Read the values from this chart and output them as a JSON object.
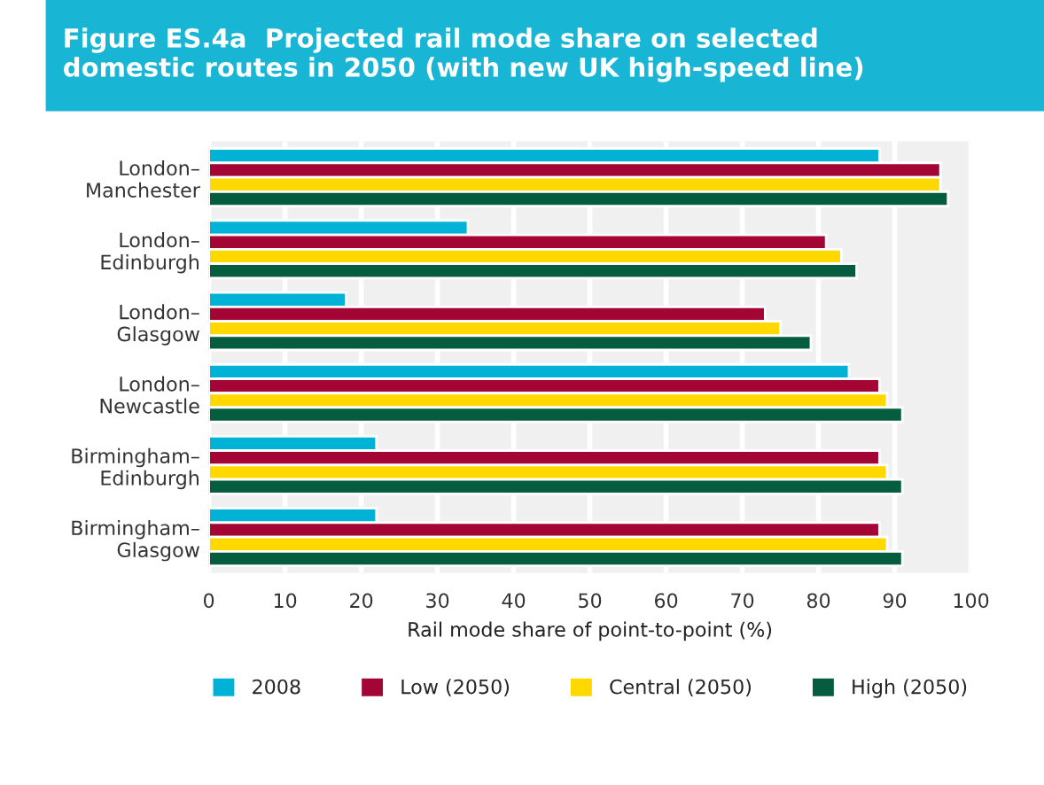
{
  "chart_data": {
    "type": "bar",
    "orientation": "horizontal",
    "title": "Figure ES.4a  Projected rail mode share on selected\ndomestic routes in 2050 (with new UK high-speed line)",
    "xlabel": "Rail mode share of point-to-point (%)",
    "categories": [
      "London–\nManchester",
      "London–\nEdinburgh",
      "London–\nGlasgow",
      "London–\nNewcastle",
      "Birmingham–\nEdinburgh",
      "Birmingham–\nGlasgow"
    ],
    "series": [
      {
        "name": "2008",
        "color": "#00b2d6",
        "values": [
          88,
          34,
          18,
          84,
          22,
          22
        ]
      },
      {
        "name": "Low (2050)",
        "color": "#a30534",
        "values": [
          96,
          81,
          73,
          88,
          88,
          88
        ]
      },
      {
        "name": "Central (2050)",
        "color": "#ffd800",
        "values": [
          96,
          83,
          75,
          89,
          89,
          89
        ]
      },
      {
        "name": "High (2050)",
        "color": "#065c3f",
        "values": [
          97,
          85,
          79,
          91,
          91,
          91
        ]
      }
    ],
    "xlim": [
      0,
      100
    ],
    "xticks": [
      0,
      10,
      20,
      30,
      40,
      50,
      60,
      70,
      80,
      90,
      100
    ],
    "grid": "x",
    "legend": "bottom"
  }
}
